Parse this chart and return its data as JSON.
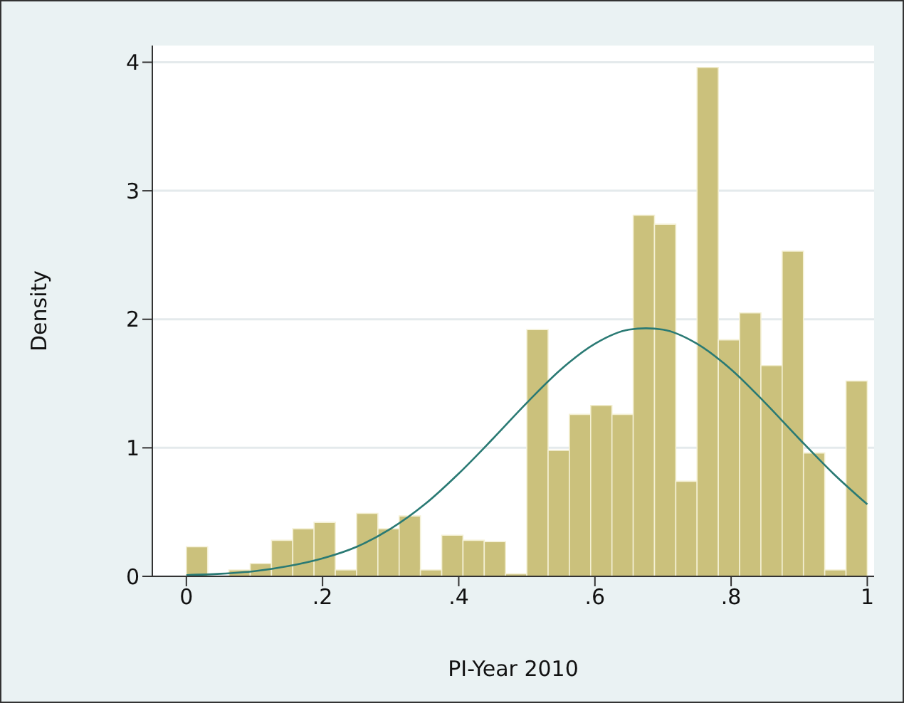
{
  "chart_data": {
    "type": "histogram",
    "xlabel": "PI-Year 2010",
    "ylabel": "Density",
    "xlim": [
      -0.05,
      1.01
    ],
    "ylim": [
      0,
      4.13
    ],
    "xticks": [
      0,
      {
        "value": 0.2,
        "label": ".2"
      },
      {
        "value": 0.4,
        "label": ".4"
      },
      {
        "value": 0.6,
        "label": ".6"
      },
      {
        "value": 0.8,
        "label": ".8"
      },
      1
    ],
    "yticks": [
      0,
      1,
      2,
      3,
      4
    ],
    "grid": "y",
    "series": [
      {
        "color": "#cbc17c",
        "bins": [
          0,
          0.03125,
          0.0625,
          0.09375,
          0.125,
          0.15625,
          0.1875,
          0.21875,
          0.25,
          0.28125,
          0.3125,
          0.34375,
          0.375,
          0.40625,
          0.4375,
          0.46875,
          0.5,
          0.53125,
          0.5625,
          0.59375,
          0.625,
          0.65625,
          0.6875,
          0.71875,
          0.75,
          0.78125,
          0.8125,
          0.84375,
          0.875,
          0.90625,
          0.9375,
          0.96875,
          1
        ],
        "values": [
          0.23,
          0,
          0.05,
          0.1,
          0.28,
          0.37,
          0.42,
          0.05,
          0.49,
          0.37,
          0.47,
          0.05,
          0.32,
          0.28,
          0.27,
          0.02,
          1.92,
          0.98,
          1.26,
          1.33,
          1.26,
          2.81,
          2.74,
          0.74,
          3.96,
          1.84,
          2.05,
          1.64,
          2.53,
          0.96,
          0.05,
          1.52
        ]
      },
      {
        "type": "line",
        "color": "#2a7a74",
        "x": [
          0,
          0.05,
          0.1,
          0.15,
          0.2,
          0.25,
          0.3,
          0.35,
          0.4,
          0.45,
          0.5,
          0.55,
          0.6,
          0.65,
          0.675,
          0.7,
          0.75,
          0.8,
          0.85,
          0.9,
          0.95,
          1
        ],
        "values": [
          0.01,
          0.02,
          0.04,
          0.08,
          0.14,
          0.23,
          0.37,
          0.56,
          0.8,
          1.07,
          1.35,
          1.61,
          1.81,
          1.92,
          1.93,
          1.92,
          1.81,
          1.61,
          1.35,
          1.07,
          0.8,
          0.56
        ]
      }
    ]
  }
}
